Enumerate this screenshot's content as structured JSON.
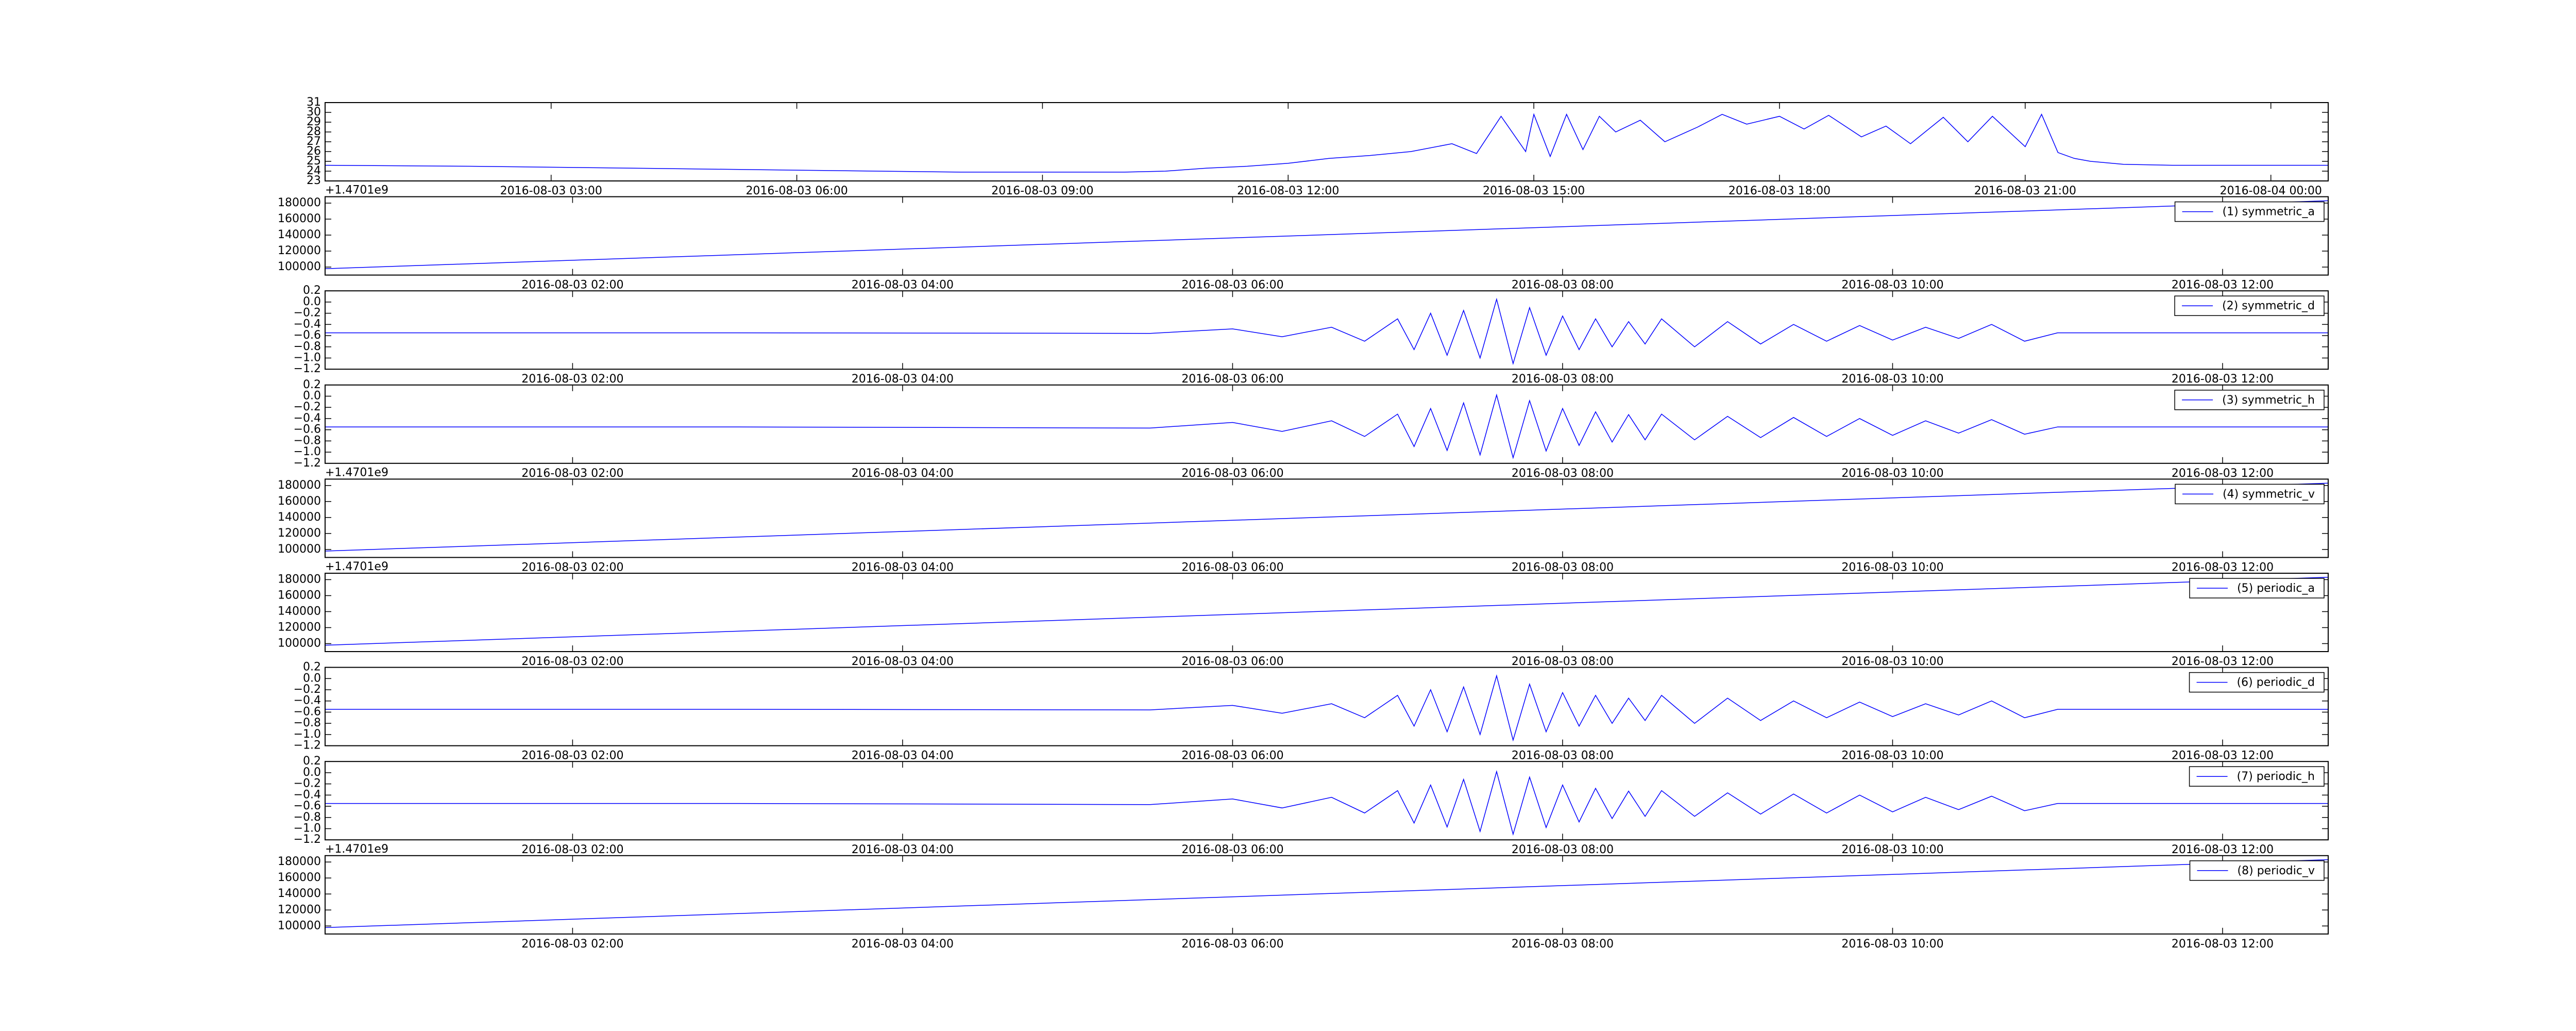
{
  "chart_data": [
    {
      "type": "line",
      "xlim": [
        0.24,
        24.7
      ],
      "ylim": [
        23,
        31
      ],
      "yticks": [
        23,
        24,
        25,
        26,
        27,
        28,
        29,
        30,
        31
      ],
      "xticks": [
        {
          "value": 3,
          "label": "2016-08-03 03:00"
        },
        {
          "value": 6,
          "label": "2016-08-03 06:00"
        },
        {
          "value": 9,
          "label": "2016-08-03 09:00"
        },
        {
          "value": 12,
          "label": "2016-08-03 12:00"
        },
        {
          "value": 15,
          "label": "2016-08-03 15:00"
        },
        {
          "value": 18,
          "label": "2016-08-03 18:00"
        },
        {
          "value": 21,
          "label": "2016-08-03 21:00"
        },
        {
          "value": 24,
          "label": "2016-08-04 00:00"
        }
      ],
      "series": [
        {
          "color": "#0000ff",
          "x": [
            0.24,
            2,
            4,
            6,
            8,
            10,
            10.5,
            11,
            11.5,
            12,
            12.5,
            13,
            13.5,
            14,
            14.3,
            14.6,
            14.9,
            15.0,
            15.2,
            15.4,
            15.6,
            15.8,
            16.0,
            16.3,
            16.6,
            17.0,
            17.3,
            17.6,
            18.0,
            18.3,
            18.6,
            19.0,
            19.3,
            19.6,
            20.0,
            20.3,
            20.6,
            21.0,
            21.2,
            21.4,
            21.6,
            21.8,
            22.2,
            22.8,
            24.7
          ],
          "values": [
            24.6,
            24.5,
            24.3,
            24.1,
            23.9,
            23.9,
            24.0,
            24.3,
            24.5,
            24.8,
            25.3,
            25.6,
            26.0,
            26.8,
            25.8,
            29.6,
            26.0,
            29.8,
            25.5,
            29.8,
            26.2,
            29.6,
            28.0,
            29.2,
            27.0,
            28.5,
            29.8,
            28.8,
            29.6,
            28.3,
            29.7,
            27.5,
            28.6,
            26.8,
            29.5,
            27.0,
            29.6,
            26.5,
            29.8,
            25.9,
            25.3,
            25.0,
            24.7,
            24.6,
            24.6
          ]
        }
      ]
    },
    {
      "type": "line",
      "offset_text": "+1.4701e9",
      "legend": "upper right",
      "xlim": [
        0.5,
        12.64
      ],
      "ylim": [
        90000,
        188000
      ],
      "yticks": [
        100000,
        120000,
        140000,
        160000,
        180000
      ],
      "xticks": [
        {
          "value": 2,
          "label": "2016-08-03 02:00"
        },
        {
          "value": 4,
          "label": "2016-08-03 04:00"
        },
        {
          "value": 6,
          "label": "2016-08-03 06:00"
        },
        {
          "value": 8,
          "label": "2016-08-03 08:00"
        },
        {
          "value": 10,
          "label": "2016-08-03 10:00"
        },
        {
          "value": 12,
          "label": "2016-08-03 12:00"
        }
      ],
      "series": [
        {
          "name": "(1) symmetric_a",
          "color": "#0000ff",
          "x": [
            0.5,
            12.64
          ],
          "values": [
            98000,
            183000
          ]
        }
      ]
    },
    {
      "type": "line",
      "legend": "upper right",
      "xlim": [
        0.5,
        12.64
      ],
      "ylim": [
        -1.2,
        0.2
      ],
      "yticks": [
        0.2,
        {
          "value": 0,
          "label": "0.0"
        },
        {
          "value": -0.2,
          "label": "−0.2"
        },
        {
          "value": -0.4,
          "label": "−0.4"
        },
        {
          "value": -0.6,
          "label": "−0.6"
        },
        {
          "value": -0.8,
          "label": "−0.8"
        },
        {
          "value": -1.0,
          "label": "−1.0"
        },
        {
          "value": -1.2,
          "label": "−1.2"
        }
      ],
      "xticks": [
        {
          "value": 2,
          "label": "2016-08-03 02:00"
        },
        {
          "value": 4,
          "label": "2016-08-03 04:00"
        },
        {
          "value": 6,
          "label": "2016-08-03 06:00"
        },
        {
          "value": 8,
          "label": "2016-08-03 08:00"
        },
        {
          "value": 10,
          "label": "2016-08-03 10:00"
        },
        {
          "value": 12,
          "label": "2016-08-03 12:00"
        }
      ],
      "series": [
        {
          "name": "(2) symmetric_d",
          "color": "#0000ff",
          "x": [
            0.5,
            3,
            5.5,
            6.0,
            6.3,
            6.6,
            6.8,
            7.0,
            7.1,
            7.2,
            7.3,
            7.4,
            7.5,
            7.6,
            7.7,
            7.8,
            7.9,
            8.0,
            8.1,
            8.2,
            8.3,
            8.4,
            8.5,
            8.6,
            8.8,
            9.0,
            9.2,
            9.4,
            9.6,
            9.8,
            10.0,
            10.2,
            10.4,
            10.6,
            10.8,
            11.0,
            12.64
          ],
          "values": [
            -0.55,
            -0.55,
            -0.56,
            -0.48,
            -0.62,
            -0.45,
            -0.7,
            -0.3,
            -0.85,
            -0.2,
            -0.95,
            -0.15,
            -1.0,
            0.05,
            -1.1,
            -0.1,
            -0.95,
            -0.25,
            -0.85,
            -0.3,
            -0.8,
            -0.35,
            -0.75,
            -0.3,
            -0.8,
            -0.35,
            -0.75,
            -0.4,
            -0.7,
            -0.42,
            -0.68,
            -0.45,
            -0.65,
            -0.4,
            -0.7,
            -0.55,
            -0.55
          ]
        }
      ]
    },
    {
      "type": "line",
      "legend": "upper right",
      "xlim": [
        0.5,
        12.64
      ],
      "ylim": [
        -1.2,
        0.2
      ],
      "yticks": [
        0.2,
        {
          "value": 0,
          "label": "0.0"
        },
        {
          "value": -0.2,
          "label": "−0.2"
        },
        {
          "value": -0.4,
          "label": "−0.4"
        },
        {
          "value": -0.6,
          "label": "−0.6"
        },
        {
          "value": -0.8,
          "label": "−0.8"
        },
        {
          "value": -1.0,
          "label": "−1.0"
        },
        {
          "value": -1.2,
          "label": "−1.2"
        }
      ],
      "xticks": [
        {
          "value": 2,
          "label": "2016-08-03 02:00"
        },
        {
          "value": 4,
          "label": "2016-08-03 04:00"
        },
        {
          "value": 6,
          "label": "2016-08-03 06:00"
        },
        {
          "value": 8,
          "label": "2016-08-03 08:00"
        },
        {
          "value": 10,
          "label": "2016-08-03 10:00"
        },
        {
          "value": 12,
          "label": "2016-08-03 12:00"
        }
      ],
      "series": [
        {
          "name": "(3) symmetric_h",
          "color": "#0000ff",
          "x": [
            0.5,
            3,
            5.5,
            6.0,
            6.3,
            6.6,
            6.8,
            7.0,
            7.1,
            7.2,
            7.3,
            7.4,
            7.5,
            7.6,
            7.7,
            7.8,
            7.9,
            8.0,
            8.1,
            8.2,
            8.3,
            8.4,
            8.5,
            8.6,
            8.8,
            9.0,
            9.2,
            9.4,
            9.6,
            9.8,
            10.0,
            10.2,
            10.4,
            10.6,
            10.8,
            11.0,
            12.64
          ],
          "values": [
            -0.55,
            -0.55,
            -0.57,
            -0.47,
            -0.63,
            -0.44,
            -0.72,
            -0.32,
            -0.9,
            -0.22,
            -0.97,
            -0.12,
            -1.05,
            0.02,
            -1.1,
            -0.08,
            -0.98,
            -0.22,
            -0.88,
            -0.28,
            -0.82,
            -0.33,
            -0.78,
            -0.32,
            -0.78,
            -0.36,
            -0.74,
            -0.38,
            -0.72,
            -0.4,
            -0.7,
            -0.44,
            -0.66,
            -0.42,
            -0.68,
            -0.55,
            -0.55
          ]
        }
      ]
    },
    {
      "type": "line",
      "offset_text": "+1.4701e9",
      "legend": "upper right",
      "xlim": [
        0.5,
        12.64
      ],
      "ylim": [
        90000,
        188000
      ],
      "yticks": [
        100000,
        120000,
        140000,
        160000,
        180000
      ],
      "xticks": [
        {
          "value": 2,
          "label": "2016-08-03 02:00"
        },
        {
          "value": 4,
          "label": "2016-08-03 04:00"
        },
        {
          "value": 6,
          "label": "2016-08-03 06:00"
        },
        {
          "value": 8,
          "label": "2016-08-03 08:00"
        },
        {
          "value": 10,
          "label": "2016-08-03 10:00"
        },
        {
          "value": 12,
          "label": "2016-08-03 12:00"
        }
      ],
      "series": [
        {
          "name": "(4) symmetric_v",
          "color": "#0000ff",
          "x": [
            0.5,
            12.64
          ],
          "values": [
            98000,
            183000
          ]
        }
      ]
    },
    {
      "type": "line",
      "offset_text": "+1.4701e9",
      "legend": "upper right",
      "xlim": [
        0.5,
        12.64
      ],
      "ylim": [
        90000,
        188000
      ],
      "yticks": [
        100000,
        120000,
        140000,
        160000,
        180000
      ],
      "xticks": [
        {
          "value": 2,
          "label": "2016-08-03 02:00"
        },
        {
          "value": 4,
          "label": "2016-08-03 04:00"
        },
        {
          "value": 6,
          "label": "2016-08-03 06:00"
        },
        {
          "value": 8,
          "label": "2016-08-03 08:00"
        },
        {
          "value": 10,
          "label": "2016-08-03 10:00"
        },
        {
          "value": 12,
          "label": "2016-08-03 12:00"
        }
      ],
      "series": [
        {
          "name": "(5) periodic_a",
          "color": "#0000ff",
          "x": [
            0.5,
            12.64
          ],
          "values": [
            98000,
            183000
          ]
        }
      ]
    },
    {
      "type": "line",
      "legend": "upper right",
      "xlim": [
        0.5,
        12.64
      ],
      "ylim": [
        -1.2,
        0.2
      ],
      "yticks": [
        0.2,
        {
          "value": 0,
          "label": "0.0"
        },
        {
          "value": -0.2,
          "label": "−0.2"
        },
        {
          "value": -0.4,
          "label": "−0.4"
        },
        {
          "value": -0.6,
          "label": "−0.6"
        },
        {
          "value": -0.8,
          "label": "−0.8"
        },
        {
          "value": -1.0,
          "label": "−1.0"
        },
        {
          "value": -1.2,
          "label": "−1.2"
        }
      ],
      "xticks": [
        {
          "value": 2,
          "label": "2016-08-03 02:00"
        },
        {
          "value": 4,
          "label": "2016-08-03 04:00"
        },
        {
          "value": 6,
          "label": "2016-08-03 06:00"
        },
        {
          "value": 8,
          "label": "2016-08-03 08:00"
        },
        {
          "value": 10,
          "label": "2016-08-03 10:00"
        },
        {
          "value": 12,
          "label": "2016-08-03 12:00"
        }
      ],
      "series": [
        {
          "name": "(6) periodic_d",
          "color": "#0000ff",
          "x": [
            0.5,
            3,
            5.5,
            6.0,
            6.3,
            6.6,
            6.8,
            7.0,
            7.1,
            7.2,
            7.3,
            7.4,
            7.5,
            7.6,
            7.7,
            7.8,
            7.9,
            8.0,
            8.1,
            8.2,
            8.3,
            8.4,
            8.5,
            8.6,
            8.8,
            9.0,
            9.2,
            9.4,
            9.6,
            9.8,
            10.0,
            10.2,
            10.4,
            10.6,
            10.8,
            11.0,
            12.64
          ],
          "values": [
            -0.55,
            -0.55,
            -0.56,
            -0.48,
            -0.62,
            -0.45,
            -0.7,
            -0.3,
            -0.85,
            -0.2,
            -0.95,
            -0.15,
            -1.0,
            0.05,
            -1.1,
            -0.1,
            -0.95,
            -0.25,
            -0.85,
            -0.3,
            -0.8,
            -0.35,
            -0.75,
            -0.3,
            -0.8,
            -0.35,
            -0.75,
            -0.4,
            -0.7,
            -0.42,
            -0.68,
            -0.45,
            -0.65,
            -0.4,
            -0.7,
            -0.55,
            -0.55
          ]
        }
      ]
    },
    {
      "type": "line",
      "legend": "upper right",
      "xlim": [
        0.5,
        12.64
      ],
      "ylim": [
        -1.2,
        0.2
      ],
      "yticks": [
        0.2,
        {
          "value": 0,
          "label": "0.0"
        },
        {
          "value": -0.2,
          "label": "−0.2"
        },
        {
          "value": -0.4,
          "label": "−0.4"
        },
        {
          "value": -0.6,
          "label": "−0.6"
        },
        {
          "value": -0.8,
          "label": "−0.8"
        },
        {
          "value": -1.0,
          "label": "−1.0"
        },
        {
          "value": -1.2,
          "label": "−1.2"
        }
      ],
      "xticks": [
        {
          "value": 2,
          "label": "2016-08-03 02:00"
        },
        {
          "value": 4,
          "label": "2016-08-03 04:00"
        },
        {
          "value": 6,
          "label": "2016-08-03 06:00"
        },
        {
          "value": 8,
          "label": "2016-08-03 08:00"
        },
        {
          "value": 10,
          "label": "2016-08-03 10:00"
        },
        {
          "value": 12,
          "label": "2016-08-03 12:00"
        }
      ],
      "series": [
        {
          "name": "(7) periodic_h",
          "color": "#0000ff",
          "x": [
            0.5,
            3,
            5.5,
            6.0,
            6.3,
            6.6,
            6.8,
            7.0,
            7.1,
            7.2,
            7.3,
            7.4,
            7.5,
            7.6,
            7.7,
            7.8,
            7.9,
            8.0,
            8.1,
            8.2,
            8.3,
            8.4,
            8.5,
            8.6,
            8.8,
            9.0,
            9.2,
            9.4,
            9.6,
            9.8,
            10.0,
            10.2,
            10.4,
            10.6,
            10.8,
            11.0,
            12.64
          ],
          "values": [
            -0.55,
            -0.55,
            -0.57,
            -0.47,
            -0.63,
            -0.44,
            -0.72,
            -0.32,
            -0.9,
            -0.22,
            -0.97,
            -0.12,
            -1.05,
            0.02,
            -1.1,
            -0.08,
            -0.98,
            -0.22,
            -0.88,
            -0.28,
            -0.82,
            -0.33,
            -0.78,
            -0.32,
            -0.78,
            -0.36,
            -0.74,
            -0.38,
            -0.72,
            -0.4,
            -0.7,
            -0.44,
            -0.66,
            -0.42,
            -0.68,
            -0.55,
            -0.55
          ]
        }
      ]
    },
    {
      "type": "line",
      "offset_text": "+1.4701e9",
      "legend": "upper right",
      "xlim": [
        0.5,
        12.64
      ],
      "ylim": [
        90000,
        188000
      ],
      "yticks": [
        100000,
        120000,
        140000,
        160000,
        180000
      ],
      "xticks": [
        {
          "value": 2,
          "label": "2016-08-03 02:00"
        },
        {
          "value": 4,
          "label": "2016-08-03 04:00"
        },
        {
          "value": 6,
          "label": "2016-08-03 06:00"
        },
        {
          "value": 8,
          "label": "2016-08-03 08:00"
        },
        {
          "value": 10,
          "label": "2016-08-03 10:00"
        },
        {
          "value": 12,
          "label": "2016-08-03 12:00"
        }
      ],
      "series": [
        {
          "name": "(8) periodic_v",
          "color": "#0000ff",
          "x": [
            0.5,
            12.64
          ],
          "values": [
            98000,
            183000
          ]
        }
      ]
    }
  ]
}
